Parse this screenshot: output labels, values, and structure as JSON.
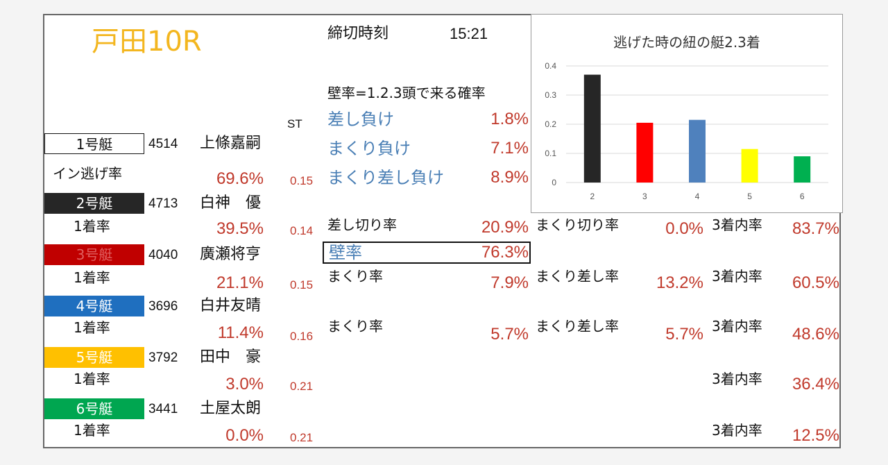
{
  "title": "戸田10R",
  "deadline": {
    "label": "締切時刻",
    "time": "15:21"
  },
  "st_label": "ST",
  "wall": {
    "header": "壁率=1.2.3頭で来る確率",
    "sashi_make": {
      "label": "差し負け",
      "value": "1.8%"
    },
    "makuri_make": {
      "label": "まくり負け",
      "value": "7.1%"
    },
    "makurisashi_make": {
      "label": "まくり差し負け",
      "value": "8.9%"
    },
    "kabe": {
      "label": "壁率",
      "value": "76.3%"
    }
  },
  "boats": [
    {
      "box": "1号艇",
      "id": "4514",
      "name": "上條嘉嗣",
      "rate_label": "イン逃げ率",
      "rate": "69.6%",
      "st": "0.15",
      "bg": "#ffffff",
      "fg": "#111111"
    },
    {
      "box": "2号艇",
      "id": "4713",
      "name": "白神　優",
      "rate_label": "1着率",
      "rate": "39.5%",
      "st": "0.14",
      "bg": "#262626",
      "fg": "#ffffff"
    },
    {
      "box": "3号艇",
      "id": "4040",
      "name": "廣瀬将亨",
      "rate_label": "1着率",
      "rate": "21.1%",
      "st": "0.15",
      "bg": "#c00000",
      "fg": "#e06060"
    },
    {
      "box": "4号艇",
      "id": "3696",
      "name": "白井友晴",
      "rate_label": "1着率",
      "rate": "11.4%",
      "st": "0.16",
      "bg": "#1f6fbf",
      "fg": "#ffffff"
    },
    {
      "box": "5号艇",
      "id": "3792",
      "name": "田中　豪",
      "rate_label": "1着率",
      "rate": "3.0%",
      "st": "0.21",
      "bg": "#ffc000",
      "fg": "#ffffff"
    },
    {
      "box": "6号艇",
      "id": "3441",
      "name": "土屋太朗",
      "rate_label": "1着率",
      "rate": "0.0%",
      "st": "0.21",
      "bg": "#00a650",
      "fg": "#ffffff"
    }
  ],
  "row2": {
    "sashikiri": {
      "label": "差し切り率",
      "value": "20.9%"
    },
    "makurikiri": {
      "label": "まくり切り率",
      "value": "0.0%"
    },
    "top3": {
      "label": "3着内率",
      "value": "83.7%"
    }
  },
  "row3": {
    "makuri": {
      "label": "まくり率",
      "value": "7.9%"
    },
    "makurisashi": {
      "label": "まくり差し率",
      "value": "13.2%"
    },
    "top3": {
      "label": "3着内率",
      "value": "60.5%"
    }
  },
  "row4": {
    "makuri": {
      "label": "まくり率",
      "value": "5.7%"
    },
    "makurisashi": {
      "label": "まくり差し率",
      "value": "5.7%"
    },
    "top3": {
      "label": "3着内率",
      "value": "48.6%"
    }
  },
  "row5": {
    "top3": {
      "label": "3着内率",
      "value": "36.4%"
    }
  },
  "row6": {
    "top3": {
      "label": "3着内率",
      "value": "12.5%"
    }
  },
  "chart_data": {
    "type": "bar",
    "title": "逃げた時の紐の艇2.3着",
    "categories": [
      "2",
      "3",
      "4",
      "5",
      "6"
    ],
    "values": [
      0.37,
      0.205,
      0.215,
      0.115,
      0.09
    ],
    "colors": [
      "#262626",
      "#ff0000",
      "#4f81bd",
      "#ffff00",
      "#00b050"
    ],
    "ylim": [
      0,
      0.4
    ],
    "yticks": [
      "0",
      "0.1",
      "0.2",
      "0.3",
      "0.4"
    ],
    "grid": true
  }
}
